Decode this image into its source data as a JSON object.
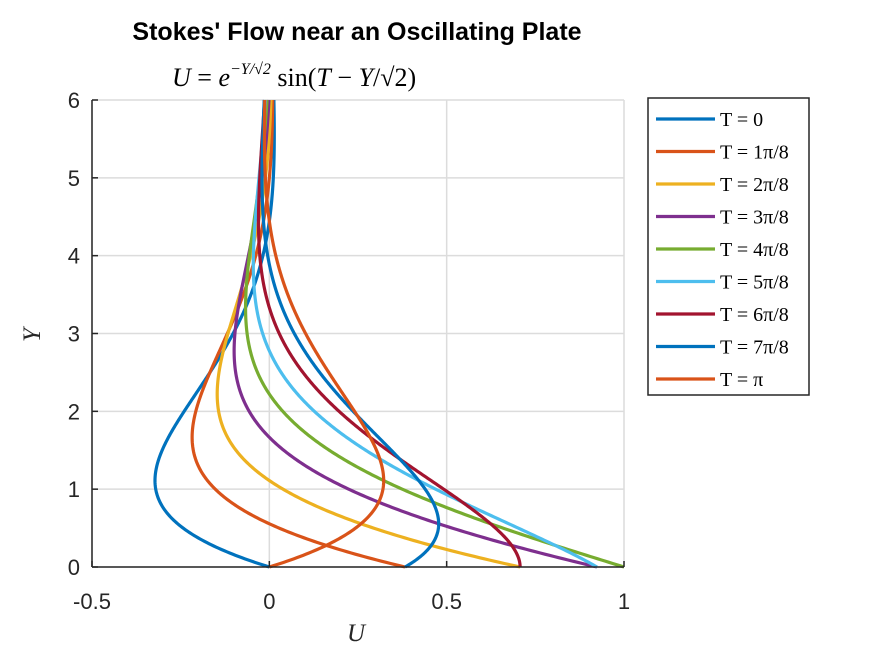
{
  "chart_data": {
    "type": "line",
    "title": "Stokes' Flow near an Oscillating Plate",
    "subtitle": "U = e^{-Y/√2} sin(T - Y/√2)",
    "xlabel": "U",
    "ylabel": "Y",
    "xlim": [
      -0.5,
      1
    ],
    "ylim": [
      0,
      6
    ],
    "xticks": [
      "-0.5",
      "0",
      "0.5",
      "1"
    ],
    "yticks": [
      "0",
      "1",
      "2",
      "3",
      "4",
      "5",
      "6"
    ],
    "grid": true,
    "legend_position": "outside-right",
    "series": [
      {
        "name": "T = 0",
        "T_over_pi": 0.0,
        "color": "#0072BD"
      },
      {
        "name": "T = 1π/8",
        "T_over_pi": 0.125,
        "color": "#D95319"
      },
      {
        "name": "T = 2π/8",
        "T_over_pi": 0.25,
        "color": "#EDB120"
      },
      {
        "name": "T = 3π/8",
        "T_over_pi": 0.375,
        "color": "#7E2F8E"
      },
      {
        "name": "T = 4π/8",
        "T_over_pi": 0.5,
        "color": "#77AC30"
      },
      {
        "name": "T = 5π/8",
        "T_over_pi": 0.625,
        "color": "#4DBEEE"
      },
      {
        "name": "T = 6π/8",
        "T_over_pi": 0.75,
        "color": "#A2142F"
      },
      {
        "name": "T = 7π/8",
        "T_over_pi": 0.875,
        "color": "#0072BD"
      },
      {
        "name": "T = π",
        "T_over_pi": 1.0,
        "color": "#D95319"
      }
    ]
  }
}
